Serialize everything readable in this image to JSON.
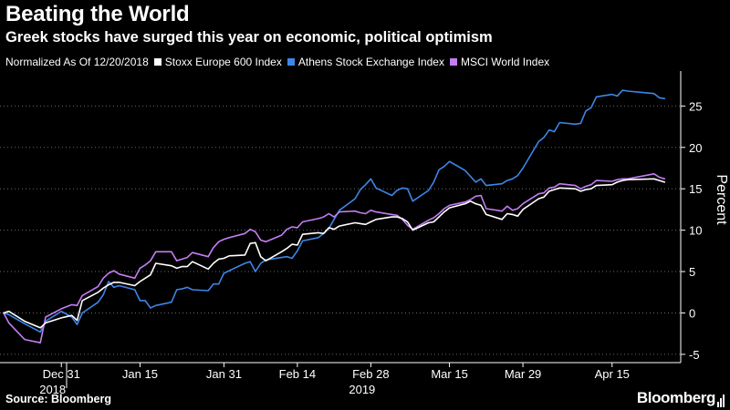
{
  "header": {
    "title": "Beating the World",
    "subtitle": "Greek stocks have surged this year on economic, political optimism"
  },
  "legend": {
    "note": "Normalized As Of 12/20/2018"
  },
  "footer": {
    "source": "Source: Bloomberg",
    "brand": "Bloomberg"
  },
  "chart_data": {
    "type": "line",
    "ylabel": "Percent",
    "ylim": [
      -6,
      29
    ],
    "yticks": [
      -5,
      0,
      5,
      10,
      15,
      20,
      25
    ],
    "x_range": [
      "2018-12-20",
      "2019-04-26"
    ],
    "grid": "horizontal-dotted",
    "y_axis_side": "right",
    "xticks": [
      {
        "label": "Dec 31",
        "date": "2018-12-31",
        "year": "2018"
      },
      {
        "label": "Jan 15",
        "date": "2019-01-15"
      },
      {
        "label": "Jan 31",
        "date": "2019-01-31"
      },
      {
        "label": "Feb 14",
        "date": "2019-02-14"
      },
      {
        "label": "Feb 28",
        "date": "2019-02-28",
        "year": "2019"
      },
      {
        "label": "Mar 15",
        "date": "2019-03-15"
      },
      {
        "label": "Mar 29",
        "date": "2019-03-29"
      },
      {
        "label": "Apr 15",
        "date": "2019-04-15"
      }
    ],
    "series": [
      {
        "name": "Stoxx Europe 600 Index",
        "color": "#ffffff",
        "points": [
          [
            "2018-12-20",
            0
          ],
          [
            "2018-12-21",
            0.2
          ],
          [
            "2018-12-24",
            -1.0
          ],
          [
            "2018-12-27",
            -1.8
          ],
          [
            "2018-12-28",
            -1.2
          ],
          [
            "2018-12-31",
            -0.6
          ],
          [
            "2019-01-02",
            -0.3
          ],
          [
            "2019-01-03",
            -0.9
          ],
          [
            "2019-01-04",
            1.5
          ],
          [
            "2019-01-07",
            2.5
          ],
          [
            "2019-01-08",
            3.0
          ],
          [
            "2019-01-09",
            3.4
          ],
          [
            "2019-01-10",
            3.7
          ],
          [
            "2019-01-11",
            3.7
          ],
          [
            "2019-01-14",
            3.3
          ],
          [
            "2019-01-15",
            3.8
          ],
          [
            "2019-01-16",
            4.2
          ],
          [
            "2019-01-17",
            4.6
          ],
          [
            "2019-01-18",
            6.0
          ],
          [
            "2019-01-21",
            5.7
          ],
          [
            "2019-01-22",
            5.4
          ],
          [
            "2019-01-23",
            5.6
          ],
          [
            "2019-01-24",
            5.6
          ],
          [
            "2019-01-25",
            6.2
          ],
          [
            "2019-01-28",
            5.3
          ],
          [
            "2019-01-29",
            6.0
          ],
          [
            "2019-01-30",
            6.5
          ],
          [
            "2019-01-31",
            6.6
          ],
          [
            "2019-02-01",
            6.9
          ],
          [
            "2019-02-04",
            7.0
          ],
          [
            "2019-02-05",
            8.4
          ],
          [
            "2019-02-06",
            8.5
          ],
          [
            "2019-02-07",
            6.8
          ],
          [
            "2019-02-08",
            6.3
          ],
          [
            "2019-02-11",
            7.4
          ],
          [
            "2019-02-12",
            7.8
          ],
          [
            "2019-02-13",
            8.3
          ],
          [
            "2019-02-14",
            8.2
          ],
          [
            "2019-02-15",
            9.5
          ],
          [
            "2019-02-18",
            9.7
          ],
          [
            "2019-02-19",
            9.6
          ],
          [
            "2019-02-20",
            10.3
          ],
          [
            "2019-02-21",
            10.1
          ],
          [
            "2019-02-22",
            10.5
          ],
          [
            "2019-02-25",
            10.9
          ],
          [
            "2019-02-26",
            10.8
          ],
          [
            "2019-02-27",
            10.7
          ],
          [
            "2019-02-28",
            11.0
          ],
          [
            "2019-03-01",
            11.3
          ],
          [
            "2019-03-04",
            11.6
          ],
          [
            "2019-03-05",
            11.6
          ],
          [
            "2019-03-06",
            11.4
          ],
          [
            "2019-03-07",
            11.0
          ],
          [
            "2019-03-08",
            10.0
          ],
          [
            "2019-03-11",
            10.9
          ],
          [
            "2019-03-12",
            11.0
          ],
          [
            "2019-03-13",
            11.6
          ],
          [
            "2019-03-14",
            12.2
          ],
          [
            "2019-03-15",
            12.7
          ],
          [
            "2019-03-18",
            13.2
          ],
          [
            "2019-03-19",
            13.5
          ],
          [
            "2019-03-20",
            13.2
          ],
          [
            "2019-03-21",
            13.0
          ],
          [
            "2019-03-22",
            11.9
          ],
          [
            "2019-03-25",
            11.3
          ],
          [
            "2019-03-26",
            12.0
          ],
          [
            "2019-03-27",
            11.9
          ],
          [
            "2019-03-28",
            11.7
          ],
          [
            "2019-03-29",
            12.5
          ],
          [
            "2019-04-01",
            13.8
          ],
          [
            "2019-04-02",
            14.0
          ],
          [
            "2019-04-03",
            14.7
          ],
          [
            "2019-04-04",
            14.9
          ],
          [
            "2019-04-05",
            15.1
          ],
          [
            "2019-04-08",
            15.0
          ],
          [
            "2019-04-09",
            14.7
          ],
          [
            "2019-04-10",
            14.9
          ],
          [
            "2019-04-11",
            15.0
          ],
          [
            "2019-04-12",
            15.4
          ],
          [
            "2019-04-15",
            15.5
          ],
          [
            "2019-04-16",
            15.8
          ],
          [
            "2019-04-17",
            16.0
          ],
          [
            "2019-04-18",
            16.1
          ],
          [
            "2019-04-23",
            16.2
          ],
          [
            "2019-04-24",
            16.0
          ],
          [
            "2019-04-25",
            15.8
          ]
        ]
      },
      {
        "name": "Athens Stock Exchange Index",
        "color": "#3d86e8",
        "points": [
          [
            "2018-12-20",
            0
          ],
          [
            "2018-12-21",
            -0.2
          ],
          [
            "2018-12-24",
            -1.3
          ],
          [
            "2018-12-27",
            -2.3
          ],
          [
            "2018-12-28",
            -1.0
          ],
          [
            "2018-12-31",
            0.2
          ],
          [
            "2019-01-02",
            -0.5
          ],
          [
            "2019-01-03",
            -1.4
          ],
          [
            "2019-01-04",
            0.0
          ],
          [
            "2019-01-07",
            1.3
          ],
          [
            "2019-01-08",
            2.2
          ],
          [
            "2019-01-09",
            3.8
          ],
          [
            "2019-01-10",
            3.1
          ],
          [
            "2019-01-11",
            3.3
          ],
          [
            "2019-01-14",
            2.8
          ],
          [
            "2019-01-15",
            1.5
          ],
          [
            "2019-01-16",
            1.5
          ],
          [
            "2019-01-17",
            0.6
          ],
          [
            "2019-01-18",
            0.9
          ],
          [
            "2019-01-21",
            1.3
          ],
          [
            "2019-01-22",
            2.8
          ],
          [
            "2019-01-23",
            2.9
          ],
          [
            "2019-01-24",
            3.1
          ],
          [
            "2019-01-25",
            2.8
          ],
          [
            "2019-01-28",
            2.7
          ],
          [
            "2019-01-29",
            3.5
          ],
          [
            "2019-01-30",
            3.5
          ],
          [
            "2019-01-31",
            4.8
          ],
          [
            "2019-02-01",
            5.1
          ],
          [
            "2019-02-04",
            6.0
          ],
          [
            "2019-02-05",
            6.2
          ],
          [
            "2019-02-06",
            5.0
          ],
          [
            "2019-02-07",
            6.0
          ],
          [
            "2019-02-08",
            6.4
          ],
          [
            "2019-02-11",
            6.7
          ],
          [
            "2019-02-12",
            6.8
          ],
          [
            "2019-02-13",
            6.6
          ],
          [
            "2019-02-14",
            7.5
          ],
          [
            "2019-02-15",
            8.7
          ],
          [
            "2019-02-18",
            9.1
          ],
          [
            "2019-02-19",
            9.6
          ],
          [
            "2019-02-20",
            10.2
          ],
          [
            "2019-02-21",
            11.3
          ],
          [
            "2019-02-22",
            12.4
          ],
          [
            "2019-02-25",
            13.8
          ],
          [
            "2019-02-26",
            14.9
          ],
          [
            "2019-02-27",
            15.5
          ],
          [
            "2019-02-28",
            16.2
          ],
          [
            "2019-03-01",
            15.1
          ],
          [
            "2019-03-04",
            14.2
          ],
          [
            "2019-03-05",
            14.8
          ],
          [
            "2019-03-06",
            15.1
          ],
          [
            "2019-03-07",
            15.0
          ],
          [
            "2019-03-08",
            13.5
          ],
          [
            "2019-03-11",
            14.8
          ],
          [
            "2019-03-12",
            15.8
          ],
          [
            "2019-03-13",
            17.3
          ],
          [
            "2019-03-14",
            17.7
          ],
          [
            "2019-03-15",
            18.3
          ],
          [
            "2019-03-18",
            17.2
          ],
          [
            "2019-03-19",
            16.5
          ],
          [
            "2019-03-20",
            15.8
          ],
          [
            "2019-03-21",
            16.2
          ],
          [
            "2019-03-22",
            15.4
          ],
          [
            "2019-03-25",
            15.6
          ],
          [
            "2019-03-26",
            16.0
          ],
          [
            "2019-03-27",
            16.2
          ],
          [
            "2019-03-28",
            16.6
          ],
          [
            "2019-03-29",
            17.5
          ],
          [
            "2019-04-01",
            20.7
          ],
          [
            "2019-04-02",
            21.2
          ],
          [
            "2019-04-03",
            22.1
          ],
          [
            "2019-04-04",
            21.9
          ],
          [
            "2019-04-05",
            23.0
          ],
          [
            "2019-04-08",
            22.8
          ],
          [
            "2019-04-09",
            22.9
          ],
          [
            "2019-04-10",
            24.4
          ],
          [
            "2019-04-11",
            24.8
          ],
          [
            "2019-04-12",
            26.1
          ],
          [
            "2019-04-15",
            26.4
          ],
          [
            "2019-04-16",
            26.2
          ],
          [
            "2019-04-17",
            26.9
          ],
          [
            "2019-04-18",
            26.8
          ],
          [
            "2019-04-23",
            26.5
          ],
          [
            "2019-04-24",
            26.0
          ],
          [
            "2019-04-25",
            25.9
          ]
        ]
      },
      {
        "name": "MSCI World Index",
        "color": "#c47ef4",
        "points": [
          [
            "2018-12-20",
            0
          ],
          [
            "2018-12-21",
            -1.2
          ],
          [
            "2018-12-24",
            -3.2
          ],
          [
            "2018-12-27",
            -3.6
          ],
          [
            "2018-12-28",
            -0.5
          ],
          [
            "2018-12-31",
            0.5
          ],
          [
            "2019-01-02",
            1.0
          ],
          [
            "2019-01-03",
            0.9
          ],
          [
            "2019-01-04",
            2.1
          ],
          [
            "2019-01-07",
            3.2
          ],
          [
            "2019-01-08",
            4.2
          ],
          [
            "2019-01-09",
            4.8
          ],
          [
            "2019-01-10",
            5.1
          ],
          [
            "2019-01-11",
            4.7
          ],
          [
            "2019-01-14",
            4.2
          ],
          [
            "2019-01-15",
            5.4
          ],
          [
            "2019-01-16",
            5.8
          ],
          [
            "2019-01-17",
            6.3
          ],
          [
            "2019-01-18",
            7.4
          ],
          [
            "2019-01-21",
            7.4
          ],
          [
            "2019-01-22",
            6.3
          ],
          [
            "2019-01-23",
            6.5
          ],
          [
            "2019-01-24",
            6.7
          ],
          [
            "2019-01-25",
            7.3
          ],
          [
            "2019-01-28",
            6.8
          ],
          [
            "2019-01-29",
            7.9
          ],
          [
            "2019-01-30",
            8.6
          ],
          [
            "2019-01-31",
            8.9
          ],
          [
            "2019-02-01",
            9.1
          ],
          [
            "2019-02-04",
            9.6
          ],
          [
            "2019-02-05",
            10.1
          ],
          [
            "2019-02-06",
            9.8
          ],
          [
            "2019-02-07",
            8.8
          ],
          [
            "2019-02-08",
            8.6
          ],
          [
            "2019-02-11",
            9.4
          ],
          [
            "2019-02-12",
            10.1
          ],
          [
            "2019-02-13",
            10.4
          ],
          [
            "2019-02-14",
            10.3
          ],
          [
            "2019-02-15",
            11.0
          ],
          [
            "2019-02-18",
            11.4
          ],
          [
            "2019-02-19",
            11.6
          ],
          [
            "2019-02-20",
            12.0
          ],
          [
            "2019-02-21",
            11.6
          ],
          [
            "2019-02-22",
            12.2
          ],
          [
            "2019-02-25",
            12.3
          ],
          [
            "2019-02-26",
            12.1
          ],
          [
            "2019-02-27",
            12.0
          ],
          [
            "2019-02-28",
            12.4
          ],
          [
            "2019-03-01",
            12.2
          ],
          [
            "2019-03-04",
            11.9
          ],
          [
            "2019-03-05",
            11.8
          ],
          [
            "2019-03-06",
            11.3
          ],
          [
            "2019-03-07",
            10.6
          ],
          [
            "2019-03-08",
            10.1
          ],
          [
            "2019-03-11",
            11.2
          ],
          [
            "2019-03-12",
            11.5
          ],
          [
            "2019-03-13",
            12.0
          ],
          [
            "2019-03-14",
            12.6
          ],
          [
            "2019-03-15",
            13.0
          ],
          [
            "2019-03-18",
            13.4
          ],
          [
            "2019-03-19",
            13.7
          ],
          [
            "2019-03-20",
            14.1
          ],
          [
            "2019-03-21",
            14.2
          ],
          [
            "2019-03-22",
            12.6
          ],
          [
            "2019-03-25",
            12.3
          ],
          [
            "2019-03-26",
            12.9
          ],
          [
            "2019-03-27",
            12.4
          ],
          [
            "2019-03-28",
            12.6
          ],
          [
            "2019-03-29",
            13.2
          ],
          [
            "2019-04-01",
            14.4
          ],
          [
            "2019-04-02",
            14.5
          ],
          [
            "2019-04-03",
            15.1
          ],
          [
            "2019-04-04",
            15.2
          ],
          [
            "2019-04-05",
            15.6
          ],
          [
            "2019-04-08",
            15.4
          ],
          [
            "2019-04-09",
            15.0
          ],
          [
            "2019-04-10",
            15.3
          ],
          [
            "2019-04-11",
            15.5
          ],
          [
            "2019-04-12",
            16.0
          ],
          [
            "2019-04-15",
            15.9
          ],
          [
            "2019-04-16",
            16.1
          ],
          [
            "2019-04-17",
            16.2
          ],
          [
            "2019-04-18",
            16.2
          ],
          [
            "2019-04-23",
            16.8
          ],
          [
            "2019-04-24",
            16.4
          ],
          [
            "2019-04-25",
            16.2
          ]
        ]
      }
    ]
  }
}
